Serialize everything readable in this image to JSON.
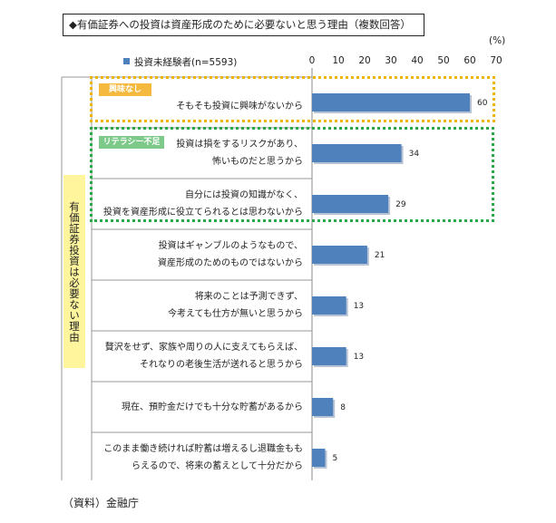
{
  "title": "◆有価証券への投資は資産形成のために必要ないと思う理由（複数回答）",
  "unit": "(%)",
  "legend": "投資未経験者(n=5593)",
  "side_label": "有価証券投資は必要ない理由",
  "badges": {
    "interest": "興味なし",
    "literacy": "リテラシー不足"
  },
  "source": "（資料）金融庁",
  "colors": {
    "bar": "#4f81bd",
    "interest_box": "#f0b400",
    "literacy_box": "#2aa84a",
    "side_label_bg": "#fff59d"
  },
  "chart_data": {
    "type": "bar",
    "orientation": "horizontal",
    "title": "◆有価証券への投資は資産形成のために必要ないと思う理由（複数回答）",
    "xlabel": "(%)",
    "xlim": [
      0,
      70
    ],
    "ticks": [
      0,
      10,
      20,
      30,
      40,
      50,
      60,
      70
    ],
    "series": [
      {
        "name": "投資未経験者(n=5593)",
        "values": [
          60,
          34,
          29,
          21,
          13,
          13,
          8,
          5
        ]
      }
    ],
    "categories": [
      [
        "そもそも投資に興味がないから"
      ],
      [
        "投資は損をするリスクがあり、",
        "怖いものだと思うから"
      ],
      [
        "自分には投資の知識がなく、",
        "投資を資産形成に役立てられるとは思わないから"
      ],
      [
        "投資はギャンブルのようなもので、",
        "資産形成のためのものではないから"
      ],
      [
        "将来のことは予測できず、",
        "今考えても仕方が無いと思うから"
      ],
      [
        "贅沢をせず、家族や周りの人に支えてもらえば、",
        "それなりの老後生活が送れると思うから"
      ],
      [
        "現在、預貯金だけでも十分な貯蓄があるから"
      ],
      [
        "このまま働き続ければ貯蓄は増えるし退職金もも",
        "らえるので、将来の蓄えとして十分だから"
      ]
    ],
    "grid": false,
    "legend_position": "top-left"
  }
}
